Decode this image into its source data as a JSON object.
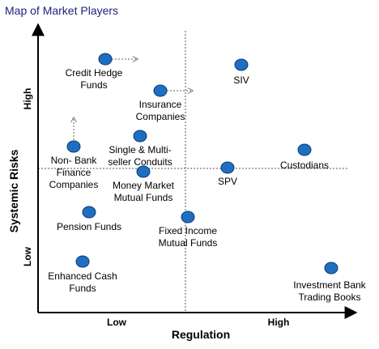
{
  "title": "Map of Market Players",
  "axes": {
    "x_title": "Regulation",
    "y_title": "Systemic Risks",
    "x_low": "Low",
    "x_high": "High",
    "y_low": "Low",
    "y_high": "High"
  },
  "players": [
    {
      "lines": [
        "Credit Hedge",
        "Funds"
      ],
      "arrow": "right"
    },
    {
      "lines": [
        "SIV"
      ]
    },
    {
      "lines": [
        "Insurance",
        "Companies"
      ],
      "arrow": "right"
    },
    {
      "lines": [
        "Single & Multi-",
        "seller Conduits"
      ]
    },
    {
      "lines": [
        "Non- Bank",
        "Finance",
        "Companies"
      ],
      "arrow": "up"
    },
    {
      "lines": [
        "Money Market",
        "Mutual Funds"
      ]
    },
    {
      "lines": [
        "SPV"
      ]
    },
    {
      "lines": [
        "Custodians"
      ]
    },
    {
      "lines": [
        "Pension Funds"
      ]
    },
    {
      "lines": [
        "Fixed Income",
        "Mutual Funds"
      ]
    },
    {
      "lines": [
        "Enhanced Cash",
        "Funds"
      ]
    },
    {
      "lines": [
        "Investment Bank",
        "Trading Books"
      ]
    }
  ],
  "colors": {
    "dot": "#1f6fc0",
    "dot_stroke": "#0b3a78",
    "title": "#1f1f7a"
  }
}
